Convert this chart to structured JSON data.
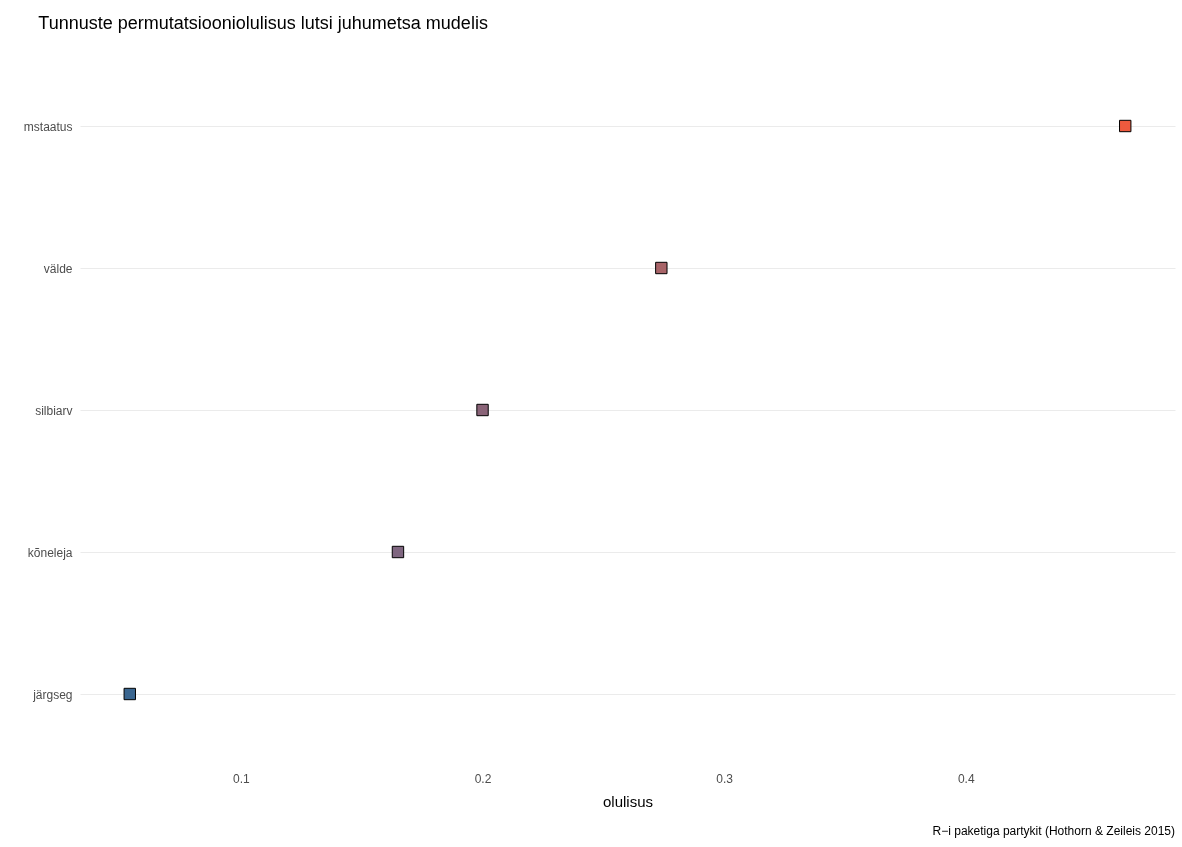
{
  "chart_data": {
    "type": "scatter",
    "title": "Tunnuste permutatsiooniolulisus lutsi juhumetsa mudelis",
    "xlabel": "olulisus",
    "orientation": "horizontal",
    "categories": [
      "mstaatus",
      "välde",
      "silbiarv",
      "kõneleja",
      "järgseg"
    ],
    "values": [
      0.466,
      0.274,
      0.2,
      0.165,
      0.054
    ],
    "colors": [
      "#ee5a3e",
      "#a86468",
      "#8a6478",
      "#7f6680",
      "#3a6690"
    ],
    "xlim": [
      0.0334,
      0.4866
    ],
    "xticks": [
      0.1,
      0.2,
      0.3,
      0.4
    ],
    "grid": "y",
    "marker": "square",
    "legend": false,
    "annotations": [
      "R−i paketiga partykit (Hothorn & Zeileis 2015)"
    ]
  }
}
